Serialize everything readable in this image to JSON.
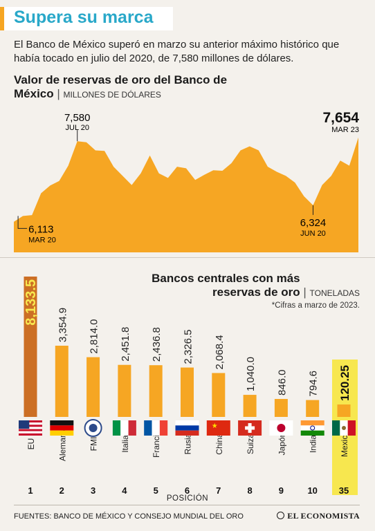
{
  "header": {
    "title": "Supera su marca",
    "intro": "El Banco de México superó en marzo su anterior máximo histórico que había tocado en julio del 2020, de 7,580 millones de dólares."
  },
  "colors": {
    "accent": "#f6a623",
    "title": "#29a8c9",
    "bar": "#f6a623",
    "bar_eu": "#cc6f24",
    "highlight": "#f7e74f"
  },
  "chart_data": [
    {
      "type": "area",
      "title": "Valor de reservas de oro del Banco de México",
      "unit": "MILLONES DE DÓLARES",
      "ylim": [
        5400,
        7800
      ],
      "values": [
        6000,
        6113,
        6130,
        6560,
        6710,
        6800,
        7100,
        7580,
        7560,
        7400,
        7390,
        7080,
        6900,
        6720,
        6950,
        7300,
        6950,
        6860,
        7080,
        7050,
        6820,
        6920,
        7010,
        7000,
        7150,
        7400,
        7480,
        7400,
        7080,
        6980,
        6900,
        6770,
        6500,
        6324,
        6720,
        6900,
        7200,
        7100,
        7654
      ],
      "annotations": [
        {
          "label": "6,113",
          "date": "MAR 20"
        },
        {
          "label": "7,580",
          "date": "JUL 20"
        },
        {
          "label": "6,324",
          "date": "JUN 20"
        },
        {
          "label": "7,654",
          "date": "MAR 23"
        }
      ]
    },
    {
      "type": "bar",
      "title": "Bancos centrales con más reservas de oro",
      "unit": "TONELADAS",
      "note": "*Cifras a marzo de 2023.",
      "xlabel": "POSICIÓN",
      "categories": [
        "EU",
        "Alemania",
        "FMI",
        "Italia",
        "Francia",
        "Rusia",
        "China",
        "Suiza",
        "Japón",
        "India",
        "Mexico"
      ],
      "positions": [
        "1",
        "2",
        "3",
        "4",
        "5",
        "6",
        "7",
        "8",
        "9",
        "10",
        "35"
      ],
      "labels": [
        "8,133.5",
        "3,354.9",
        "2,814.0",
        "2,451.8",
        "2,436.8",
        "2,326.5",
        "2,068.4",
        "1,040.0",
        "846.0",
        "794.6",
        "120.25"
      ],
      "values": [
        8133.5,
        3354.9,
        2814.0,
        2451.8,
        2436.8,
        2326.5,
        2068.4,
        1040.0,
        846.0,
        794.6,
        120.25
      ]
    }
  ],
  "footer": {
    "source": "FUENTES: BANCO DE MÉXICO Y CONSEJO MUNDIAL DEL ORO",
    "brand": "EL ECONOMISTA"
  }
}
